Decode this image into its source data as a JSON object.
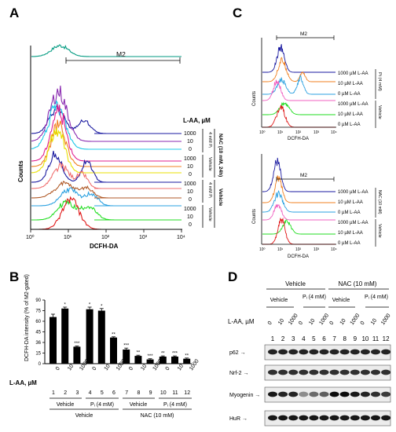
{
  "panels": {
    "A": "A",
    "B": "B",
    "C": "C",
    "D": "D"
  },
  "colors": {
    "teal": "#009a80",
    "green2": "#1aa83a",
    "magenta": "#e02090",
    "purple": "#8a2ab0",
    "cyan": "#1ec8e8",
    "orange": "#f08020",
    "yellow": "#e8e000",
    "navy": "#1a1aa0",
    "salmon": "#f07070",
    "brown": "#b05a28",
    "lime": "#22dd22",
    "red": "#e01818",
    "pink": "#f060c0",
    "sky": "#2aa0e0",
    "bar": "#000000"
  },
  "panel_a": {
    "gate_label": "M2",
    "xlabel": "DCFH-DA",
    "ylabel": "Counts",
    "xticks": [
      "10⁰",
      "10¹",
      "10²",
      "10³",
      "10⁴"
    ],
    "legend_title": "L-AA, µM",
    "conc": [
      "1000",
      "10",
      "0",
      "1000",
      "10",
      "0",
      "1000",
      "10",
      "0",
      "1000",
      "10",
      "0"
    ],
    "sub_groups": [
      "4 mM Pᵢ",
      "Vehicle",
      "4 mM Pᵢ",
      "Vehicle"
    ],
    "main_groups": [
      "NAC (10 mM, 24h)",
      "Vehicle"
    ]
  },
  "panel_b": {
    "ylabel": "DCFH-DA intensity (% of M2-gated)",
    "yticks": [
      "90",
      "75",
      "60",
      "45",
      "36",
      "15",
      "0"
    ],
    "xlabel": "L-AA, µM",
    "categories": [
      "0",
      "10",
      "1000",
      "0",
      "10",
      "1000",
      "0",
      "10",
      "1000",
      "0",
      "10",
      "1000"
    ],
    "lane_numbers": [
      "1",
      "2",
      "3",
      "4",
      "5",
      "6",
      "7",
      "8",
      "9",
      "10",
      "11",
      "12"
    ],
    "sub_groups": [
      "Vehicle",
      "Pᵢ (4 mM)",
      "Vehicle",
      "Pᵢ (4 mM)"
    ],
    "main_groups": [
      "Vehicle",
      "NAC (10 mM)"
    ],
    "significance": [
      "",
      "*",
      "***",
      "*",
      "*",
      "**",
      "***",
      "**",
      "***",
      "**",
      "***",
      "**"
    ]
  },
  "chart_data": {
    "type": "bar",
    "categories": [
      "0",
      "10",
      "1000",
      "0",
      "10",
      "1000",
      "0",
      "10",
      "1000",
      "0",
      "10",
      "1000"
    ],
    "values": [
      66,
      78,
      24,
      77,
      75,
      37,
      20,
      11,
      6,
      10,
      10,
      7
    ],
    "errors": [
      4,
      2,
      1,
      3,
      3,
      1,
      2,
      1,
      1,
      1,
      1,
      1
    ],
    "ylabel": "DCFH-DA intensity (% of M2-gated)",
    "xlabel": "L-AA, µM",
    "ylim": [
      0,
      90
    ],
    "grid": false
  },
  "panel_c": {
    "gate_label": "M2",
    "xlabel": "DCFH-DA",
    "ylabel": "Counts",
    "xticks": [
      "10⁰",
      "10¹",
      "10²",
      "10³",
      "10⁴"
    ],
    "top_legend": [
      "1000 µM L-AA",
      "10 µM L-AA",
      "0 µM L-AA",
      "1000 µM L-AA",
      "10 µM L-AA",
      "0 µM L-AA"
    ],
    "top_groups": [
      "Pi (4 mM)",
      "Vehicle"
    ],
    "bottom_legend": [
      "1000 µM L-AA",
      "10 µM L-AA",
      "0 µM L-AA",
      "1000 µM L-AA",
      "10 µM L-AA",
      "0 µM L-AA"
    ],
    "bottom_groups": [
      "NAC (10 mM)",
      "Vehicle"
    ]
  },
  "panel_d": {
    "main_groups": [
      "Vehicle",
      "NAC (10 mM)"
    ],
    "sub_groups": [
      "Vehicle",
      "Pᵢ (4 mM)",
      "Vehicle",
      "Pᵢ (4 mM)"
    ],
    "conc_label": "L-AA, µM",
    "concs": [
      "0",
      "10",
      "1000",
      "0",
      "10",
      "1000",
      "0",
      "10",
      "1000",
      "0",
      "10",
      "1000"
    ],
    "lanes": [
      "1",
      "2",
      "3",
      "4",
      "5",
      "6",
      "7",
      "8",
      "9",
      "10",
      "11",
      "12"
    ],
    "proteins": [
      "p62",
      "Nrf-2",
      "Myogenin",
      "HuR"
    ],
    "band_intensity": [
      [
        0.85,
        0.85,
        0.85,
        0.85,
        0.85,
        0.85,
        0.85,
        0.85,
        0.85,
        0.85,
        0.85,
        0.85
      ],
      [
        0.8,
        0.8,
        0.8,
        0.8,
        0.8,
        0.8,
        0.8,
        0.8,
        0.8,
        0.8,
        0.8,
        0.8
      ],
      [
        0.9,
        0.85,
        0.85,
        0.4,
        0.55,
        0.6,
        0.95,
        0.95,
        0.9,
        0.85,
        0.8,
        0.75
      ],
      [
        0.9,
        0.9,
        0.9,
        0.9,
        0.9,
        0.9,
        0.9,
        0.9,
        0.9,
        0.9,
        0.9,
        0.9
      ]
    ]
  }
}
